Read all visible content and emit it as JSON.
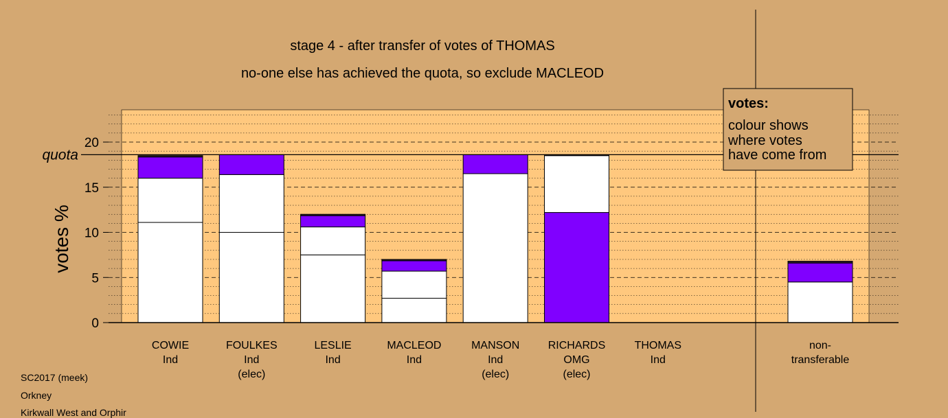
{
  "chart_data": {
    "type": "bar",
    "stacked": true,
    "title": "stage 4 - after transfer of votes of THOMAS",
    "subtitle": "no-one else has achieved the quota, so exclude MACLEOD",
    "ylabel": "votes %",
    "ylim": [
      0,
      24
    ],
    "yticks": [
      0,
      5,
      10,
      15,
      20
    ],
    "quota": 18.6,
    "quota_label": "quota",
    "colors": {
      "white": "#ffffff",
      "transfer": "#8000ff",
      "plot_bg": "#ffc87e",
      "page_bg": "#d4a872"
    },
    "categories": [
      {
        "name": "COWIE",
        "party": "Ind",
        "status": "",
        "segments": [
          {
            "kind": "white",
            "from": 0,
            "to": 11.1
          },
          {
            "kind": "white",
            "from": 11.1,
            "to": 16.0
          },
          {
            "kind": "transfer",
            "from": 16.0,
            "to": 18.35
          },
          {
            "kind": "dark",
            "from": 18.35,
            "to": 18.5
          }
        ]
      },
      {
        "name": "FOULKES",
        "party": "Ind",
        "status": "(elec)",
        "segments": [
          {
            "kind": "white",
            "from": 0,
            "to": 10.0
          },
          {
            "kind": "white",
            "from": 10.0,
            "to": 16.4
          },
          {
            "kind": "transfer",
            "from": 16.4,
            "to": 18.6
          }
        ]
      },
      {
        "name": "LESLIE",
        "party": "Ind",
        "status": "",
        "segments": [
          {
            "kind": "white",
            "from": 0,
            "to": 7.5
          },
          {
            "kind": "white",
            "from": 7.5,
            "to": 10.6
          },
          {
            "kind": "transfer",
            "from": 10.6,
            "to": 11.85
          },
          {
            "kind": "dark",
            "from": 11.85,
            "to": 12.0
          }
        ]
      },
      {
        "name": "MACLEOD",
        "party": "Ind",
        "status": "",
        "segments": [
          {
            "kind": "white",
            "from": 0,
            "to": 2.7
          },
          {
            "kind": "white",
            "from": 2.7,
            "to": 5.7
          },
          {
            "kind": "transfer",
            "from": 5.7,
            "to": 6.85
          },
          {
            "kind": "dark",
            "from": 6.85,
            "to": 7.0
          }
        ]
      },
      {
        "name": "MANSON",
        "party": "Ind",
        "status": "(elec)",
        "segments": [
          {
            "kind": "white",
            "from": 0,
            "to": 16.5
          },
          {
            "kind": "transfer",
            "from": 16.5,
            "to": 18.6
          }
        ]
      },
      {
        "name": "RICHARDS",
        "party": "OMG",
        "status": "(elec)",
        "segments": [
          {
            "kind": "transfer",
            "from": 0,
            "to": 12.2
          },
          {
            "kind": "white",
            "from": 12.2,
            "to": 18.5
          },
          {
            "kind": "dark",
            "from": 18.5,
            "to": 18.6
          }
        ]
      },
      {
        "name": "THOMAS",
        "party": "Ind",
        "status": "",
        "segments": []
      }
    ],
    "nontransferable": {
      "label_line1": "non-",
      "label_line2": "transferable",
      "segments": [
        {
          "kind": "white",
          "from": 0,
          "to": 4.5
        },
        {
          "kind": "transfer",
          "from": 4.5,
          "to": 6.6
        },
        {
          "kind": "dark",
          "from": 6.6,
          "to": 6.8
        }
      ]
    },
    "legend": {
      "title": "votes:",
      "lines": [
        "colour shows",
        "where votes",
        "have come from"
      ]
    }
  },
  "footer": {
    "line1": "SC2017 (meek)",
    "line2": "Orkney",
    "line3": "Kirkwall West and Orphir"
  }
}
